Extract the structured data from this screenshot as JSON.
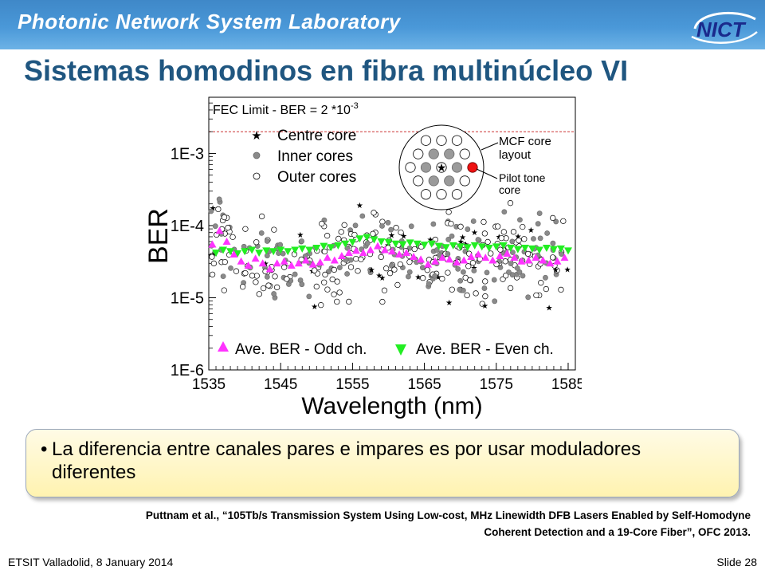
{
  "header": {
    "lab_name": "Photonic Network System Laboratory",
    "logo_text": "NICT"
  },
  "slide": {
    "title": "Sistemas homodinos en fibra multinúcleo VI",
    "bullet": "La diferencia entre canales pares e impares es por usar moduladores diferentes",
    "reference_line1": "Puttnam et al., “105Tb/s Transmission System Using Low-cost, MHz Linewidth DFB Lasers Enabled by Self-Homodyne",
    "reference_line2": "Coherent Detection and a 19-Core Fiber”, OFC 2013."
  },
  "footer": {
    "left": "ETSIT Valladolid, 8 January 2014",
    "right": "Slide 28"
  },
  "colors": {
    "banner": "#4a98d8",
    "title": "#1f5680",
    "odd_series": "#ff33ff",
    "even_series": "#22ee22",
    "fec_line": "#cc3333",
    "pilot_core": "#ee1111"
  },
  "chart_data": {
    "type": "scatter",
    "xlabel": "Wavelength (nm)",
    "ylabel": "BER",
    "xlim": [
      1535,
      1586
    ],
    "ylim": [
      1e-06,
      0.006
    ],
    "y_scale": "log",
    "x_ticks": [
      1535,
      1545,
      1555,
      1565,
      1575,
      1585
    ],
    "y_ticks": [
      {
        "label": "1E-3",
        "value": 0.001
      },
      {
        "label": "1E-4",
        "value": 0.0001
      },
      {
        "label": "1E-5",
        "value": 1e-05
      },
      {
        "label": "1E-6",
        "value": 1e-06
      }
    ],
    "fec_limit": {
      "label_main": "FEC Limit - BER = 2 *10",
      "label_exp": "-3",
      "value": 0.002
    },
    "legend_top": [
      "Centre core",
      "Inner cores",
      "Outer cores"
    ],
    "legend_bottom": [
      "Ave. BER - Odd ch.",
      "Ave. BER - Even ch."
    ],
    "inset": {
      "layout_label_1": "MCF core",
      "layout_label_2": "layout",
      "pilot_label_1": "Pilot tone",
      "pilot_label_2": "core"
    },
    "series": [
      {
        "name": "Ave. BER - Odd ch.",
        "x": [
          1535.5,
          1536.5,
          1537.5,
          1538.5,
          1539.5,
          1540.5,
          1541.5,
          1542.5,
          1543.5,
          1544.5,
          1545.5,
          1546.5,
          1547.5,
          1548.5,
          1549.5,
          1550.5,
          1551.5,
          1552.5,
          1553.5,
          1554.5,
          1555.5,
          1556.5,
          1557.5,
          1558.5,
          1559.5,
          1560.5,
          1561.5,
          1562.5,
          1563.5,
          1564.5,
          1565.5,
          1566.5,
          1567.5,
          1568.5,
          1569.5,
          1570.5,
          1571.5,
          1572.5,
          1573.5,
          1574.5,
          1575.5,
          1576.5,
          1577.5,
          1578.5,
          1579.5,
          1580.5,
          1581.5,
          1582.5,
          1583.5,
          1584.5
        ],
        "y": [
          5.5e-05,
          8.5e-05,
          6e-05,
          4e-05,
          3.2e-05,
          2.8e-05,
          3.5e-05,
          3e-05,
          2.5e-05,
          3e-05,
          3.2e-05,
          2.8e-05,
          3e-05,
          3.3e-05,
          2.9e-05,
          3.1e-05,
          3.6e-05,
          3.3e-05,
          3.8e-05,
          4.2e-05,
          4.5e-05,
          4.2e-05,
          4.6e-05,
          5.2e-05,
          4.6e-05,
          4.4e-05,
          4e-05,
          4.2e-05,
          3.7e-05,
          3.4e-05,
          2.9e-05,
          3.2e-05,
          3.6e-05,
          3.4e-05,
          3.1e-05,
          3.3e-05,
          3.7e-05,
          4e-05,
          3.6e-05,
          3.3e-05,
          3.8e-05,
          4.1e-05,
          3.6e-05,
          3.2e-05,
          3.3e-05,
          3.6e-05,
          3.3e-05,
          3e-05,
          3.2e-05,
          3.6e-05
        ]
      },
      {
        "name": "Ave. BER - Even ch.",
        "x": [
          1536,
          1537,
          1538,
          1539,
          1540,
          1541,
          1542,
          1543,
          1544,
          1545,
          1546,
          1547,
          1548,
          1549,
          1550,
          1551,
          1552,
          1553,
          1554,
          1555,
          1556,
          1557,
          1558,
          1559,
          1560,
          1561,
          1562,
          1563,
          1564,
          1565,
          1566,
          1567,
          1568,
          1569,
          1570,
          1571,
          1572,
          1573,
          1574,
          1575,
          1576,
          1577,
          1578,
          1579,
          1580,
          1581,
          1582,
          1583,
          1584,
          1585
        ],
        "y": [
          4.2e-05,
          4.6e-05,
          4.4e-05,
          4.1e-05,
          4.4e-05,
          4.6e-05,
          4.2e-05,
          4.5e-05,
          4.4e-05,
          4.6e-05,
          4.4e-05,
          4.6e-05,
          4.8e-05,
          4.6e-05,
          4.9e-05,
          5.2e-05,
          5e-05,
          5.3e-05,
          5.6e-05,
          5.9e-05,
          6.6e-05,
          6.9e-05,
          6.4e-05,
          6e-05,
          5.9e-05,
          5.6e-05,
          5.5e-05,
          5.8e-05,
          5.6e-05,
          5.4e-05,
          5.6e-05,
          5.2e-05,
          5e-05,
          5.3e-05,
          5.1e-05,
          5e-05,
          5.3e-05,
          5.1e-05,
          4.9e-05,
          5.1e-05,
          5.3e-05,
          4.9e-05,
          4.7e-05,
          4.9e-05,
          4.8e-05,
          4.6e-05,
          4.9e-05,
          4.7e-05,
          4.8e-05,
          4.5e-05
        ]
      }
    ]
  }
}
